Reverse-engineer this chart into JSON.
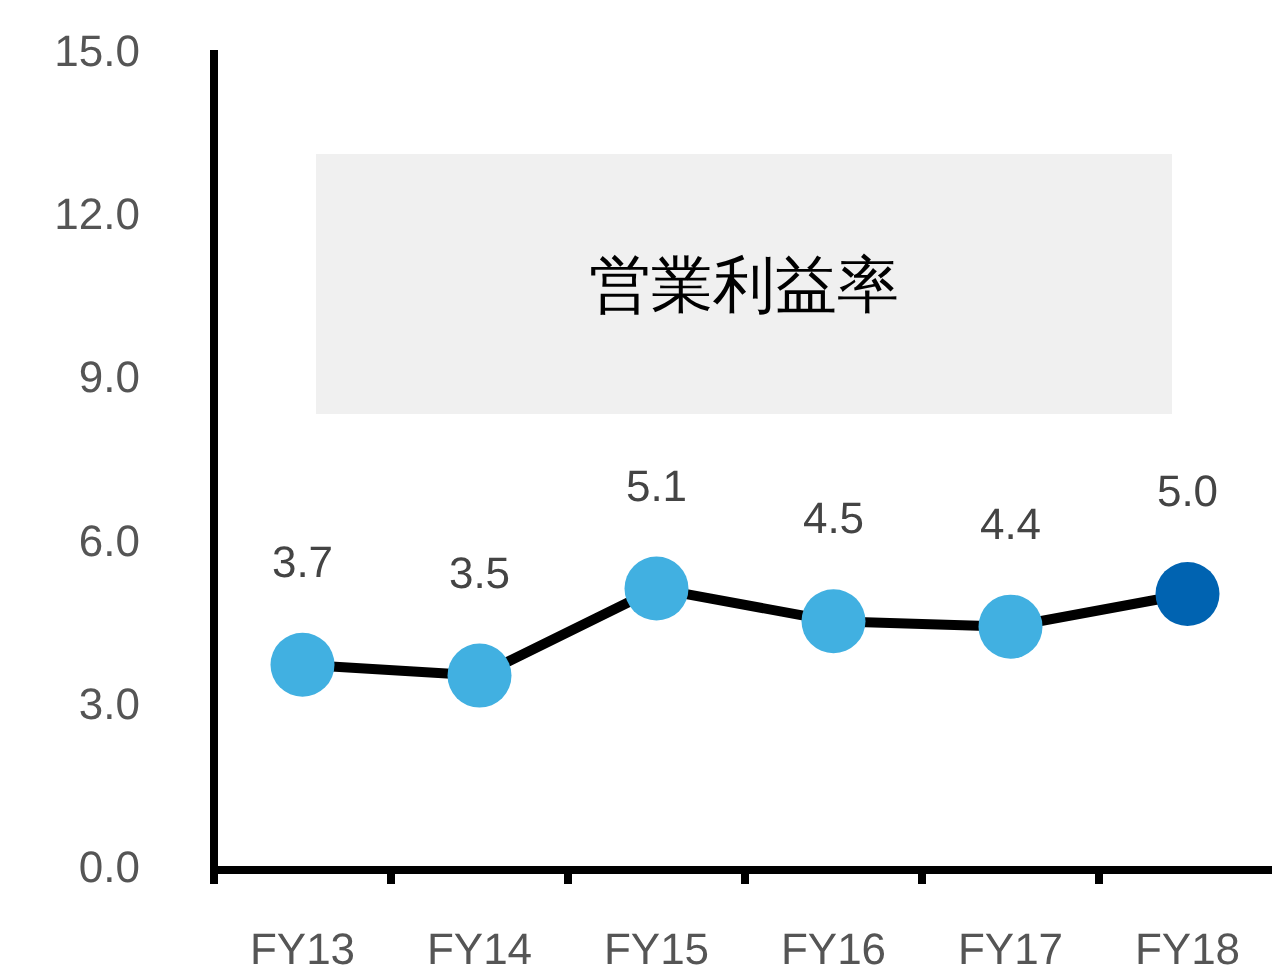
{
  "chart_data": {
    "type": "line",
    "title": "営業利益率",
    "categories": [
      "FY13",
      "FY14",
      "FY15",
      "FY16",
      "FY17",
      "FY18"
    ],
    "values": [
      3.7,
      3.5,
      5.1,
      4.5,
      4.4,
      5.0
    ],
    "color": "#000000",
    "colors": [
      "#41b0e1",
      "#41b0e1",
      "#41b0e1",
      "#41b0e1",
      "#41b0e1",
      "#0063b1"
    ],
    "ylim": [
      0,
      15
    ],
    "yticks": [
      {
        "value": 0,
        "label": "0.0"
      },
      {
        "value": 3,
        "label": "3.0"
      },
      {
        "value": 6,
        "label": "6.0"
      },
      {
        "value": 9,
        "label": "9.0"
      },
      {
        "value": 12,
        "label": "12.0"
      },
      {
        "value": 15,
        "label": "15.0"
      }
    ],
    "value_labels": [
      "3.7",
      "3.5",
      "5.1",
      "4.5",
      "4.4",
      "5.0"
    ],
    "marker": "circle"
  }
}
